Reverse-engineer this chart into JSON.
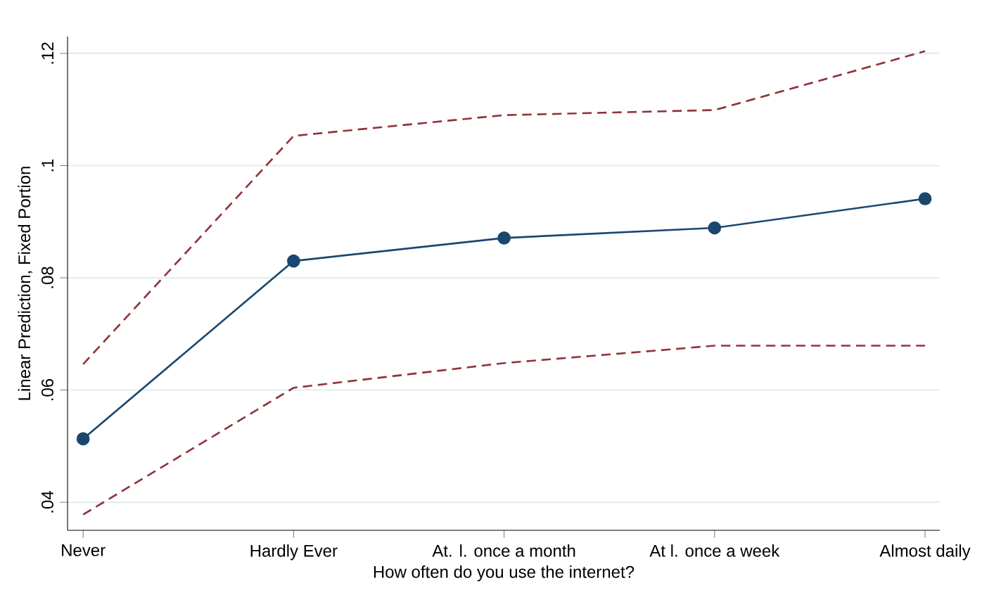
{
  "chart_data": {
    "type": "line",
    "xlabel": "How often do you use the internet?",
    "ylabel": "Linear Prediction, Fixed Portion",
    "categories": [
      "Never",
      "Hardly Ever",
      "At. l. once a month",
      "At l. once a week",
      "Almost daily"
    ],
    "series": [
      {
        "color": "#1a476f",
        "marker": "circle",
        "line_style": "solid",
        "values": [
          0.0513,
          0.083,
          0.0871,
          0.0889,
          0.0941
        ]
      },
      {
        "color": "#90353b",
        "marker": "none",
        "line_style": "dashed",
        "values": [
          0.0646,
          0.1053,
          0.109,
          0.1099,
          0.1204
        ]
      },
      {
        "color": "#90353b",
        "marker": "none",
        "line_style": "dashed",
        "values": [
          0.0378,
          0.0604,
          0.0648,
          0.0679,
          0.0679
        ]
      }
    ],
    "ylim": [
      0.035,
      0.123
    ],
    "yticks": [
      {
        "value": 0.04,
        "label": ".04"
      },
      {
        "value": 0.06,
        "label": ".06"
      },
      {
        "value": 0.08,
        "label": ".08"
      },
      {
        "value": 0.1,
        "label": ".1"
      },
      {
        "value": 0.12,
        "label": ".12"
      }
    ],
    "grid": "y"
  }
}
